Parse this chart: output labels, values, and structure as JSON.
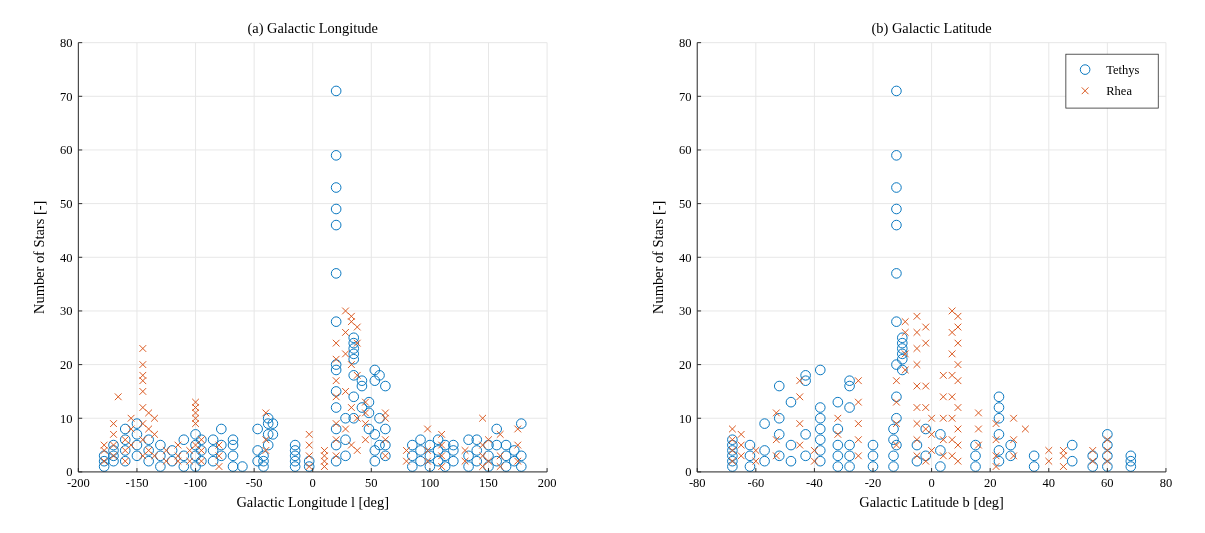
{
  "chart_data": [
    {
      "type": "scatter",
      "title": "(a) Galactic Longitude",
      "xlabel": "Galactic Longitude l [deg]",
      "ylabel": "Number of Stars [-]",
      "xlim": [
        -200,
        200
      ],
      "xticks": [
        -200,
        -150,
        -100,
        -50,
        0,
        50,
        100,
        150,
        200
      ],
      "ylim": [
        0,
        80
      ],
      "yticks": [
        0,
        10,
        20,
        30,
        40,
        50,
        60,
        70,
        80
      ],
      "grid": true,
      "legend": false,
      "series": [
        {
          "color": "#0072bd",
          "marker": "circle",
          "x": [
            -178,
            -178,
            -178,
            -170,
            -170,
            -170,
            -170,
            -160,
            -160,
            -160,
            -160,
            -150,
            -150,
            -150,
            -150,
            -140,
            -140,
            -140,
            -130,
            -130,
            -130,
            -120,
            -120,
            -110,
            -110,
            -110,
            -100,
            -100,
            -100,
            -100,
            -95,
            -95,
            -95,
            -85,
            -85,
            -85,
            -78,
            -78,
            -78,
            -68,
            -68,
            -68,
            -68,
            -60,
            -47,
            -47,
            -47,
            -42,
            -42,
            -42,
            -38,
            -38,
            -38,
            -38,
            -34,
            -34,
            -15,
            -15,
            -15,
            -15,
            -15,
            -3,
            -3,
            20,
            20,
            20,
            20,
            20,
            20,
            20,
            20,
            20,
            20,
            20,
            20,
            20,
            20,
            28,
            28,
            28,
            35,
            35,
            35,
            35,
            35,
            35,
            35,
            35,
            42,
            42,
            42,
            48,
            48,
            48,
            53,
            53,
            53,
            53,
            53,
            57,
            57,
            57,
            62,
            62,
            62,
            62,
            85,
            85,
            85,
            92,
            92,
            92,
            100,
            100,
            100,
            107,
            107,
            107,
            113,
            113,
            113,
            120,
            120,
            120,
            133,
            133,
            133,
            140,
            140,
            140,
            150,
            150,
            150,
            157,
            157,
            157,
            165,
            165,
            165,
            172,
            172,
            178,
            178,
            178
          ],
          "values": [
            1,
            2,
            3,
            2,
            3,
            4,
            5,
            2,
            4,
            6,
            8,
            3,
            5,
            7,
            9,
            2,
            4,
            6,
            1,
            3,
            5,
            2,
            4,
            1,
            3,
            6,
            1,
            3,
            5,
            7,
            2,
            4,
            6,
            2,
            4,
            6,
            3,
            5,
            8,
            1,
            3,
            5,
            6,
            1,
            2,
            4,
            8,
            1,
            2,
            3,
            5,
            7,
            9,
            10,
            7,
            9,
            1,
            2,
            3,
            4,
            5,
            1,
            2,
            2,
            5,
            8,
            12,
            15,
            19,
            20,
            28,
            37,
            46,
            49,
            53,
            59,
            71,
            3,
            6,
            10,
            10,
            14,
            18,
            21,
            22,
            23,
            24,
            25,
            12,
            16,
            17,
            13,
            11,
            8,
            19,
            17,
            7,
            4,
            2,
            18,
            10,
            5,
            16,
            8,
            5,
            3,
            1,
            3,
            5,
            2,
            4,
            6,
            1,
            3,
            5,
            2,
            4,
            6,
            1,
            3,
            5,
            2,
            4,
            5,
            1,
            3,
            6,
            2,
            4,
            6,
            1,
            3,
            5,
            2,
            5,
            8,
            1,
            3,
            5,
            2,
            4,
            9,
            1,
            3
          ]
        },
        {
          "color": "#d95319",
          "marker": "cross",
          "x": [
            -178,
            -178,
            -178,
            -170,
            -170,
            -170,
            -170,
            -166,
            -160,
            -160,
            -160,
            -155,
            -155,
            -155,
            -145,
            -145,
            -145,
            -145,
            -145,
            -145,
            -145,
            -145,
            -145,
            -140,
            -140,
            -140,
            -135,
            -135,
            -135,
            -125,
            -125,
            -115,
            -115,
            -115,
            -105,
            -105,
            -100,
            -100,
            -100,
            -100,
            -100,
            -100,
            -95,
            -95,
            -95,
            -80,
            -80,
            -80,
            -40,
            -40,
            -40,
            -3,
            -3,
            -3,
            -3,
            10,
            10,
            10,
            10,
            20,
            20,
            20,
            20,
            20,
            20,
            20,
            28,
            28,
            28,
            28,
            28,
            33,
            33,
            33,
            33,
            33,
            38,
            38,
            38,
            38,
            38,
            45,
            45,
            45,
            45,
            62,
            62,
            62,
            62,
            80,
            80,
            98,
            98,
            98,
            110,
            110,
            110,
            110,
            130,
            130,
            145,
            145,
            145,
            145,
            150,
            150,
            160,
            160,
            160,
            175,
            175,
            175
          ],
          "values": [
            2,
            4,
            5,
            3,
            5,
            7,
            9,
            14,
            2,
            4,
            6,
            5,
            8,
            10,
            3,
            6,
            9,
            12,
            15,
            17,
            18,
            20,
            23,
            4,
            8,
            11,
            3,
            7,
            10,
            2,
            4,
            2,
            3,
            5,
            2,
            4,
            5,
            9,
            10,
            11,
            12,
            13,
            2,
            4,
            6,
            1,
            3,
            5,
            11,
            6,
            4,
            1,
            3,
            5,
            7,
            1,
            2,
            3,
            4,
            3,
            6,
            9,
            14,
            17,
            21,
            24,
            8,
            15,
            22,
            26,
            30,
            5,
            12,
            20,
            28,
            29,
            4,
            10,
            18,
            24,
            27,
            6,
            9,
            13,
            11,
            3,
            6,
            10,
            11,
            2,
            4,
            2,
            4,
            8,
            1,
            3,
            5,
            7,
            2,
            4,
            1,
            3,
            5,
            10,
            2,
            6,
            1,
            3,
            7,
            2,
            5,
            8
          ]
        }
      ]
    },
    {
      "type": "scatter",
      "title": "(b) Galactic Latitude",
      "xlabel": "Galactic Latitude b [deg]",
      "ylabel": "Number of Stars [-]",
      "xlim": [
        -80,
        80
      ],
      "xticks": [
        -80,
        -60,
        -40,
        -20,
        0,
        20,
        40,
        60,
        80
      ],
      "ylim": [
        0,
        80
      ],
      "yticks": [
        0,
        10,
        20,
        30,
        40,
        50,
        60,
        70,
        80
      ],
      "grid": true,
      "legend": "top right",
      "series": [
        {
          "name": "Tethys",
          "color": "#0072bd",
          "marker": "circle",
          "x": [
            -68,
            -68,
            -68,
            -68,
            -68,
            -68,
            -62,
            -62,
            -62,
            -57,
            -57,
            -57,
            -52,
            -52,
            -52,
            -52,
            -48,
            -48,
            -48,
            -43,
            -43,
            -43,
            -43,
            -38,
            -38,
            -38,
            -38,
            -38,
            -38,
            -38,
            -32,
            -32,
            -32,
            -32,
            -32,
            -28,
            -28,
            -28,
            -28,
            -28,
            -28,
            -20,
            -20,
            -20,
            -13,
            -13,
            -13,
            -13,
            -12,
            -12,
            -12,
            -12,
            -12,
            -12,
            -12,
            -12,
            -12,
            -12,
            -12,
            -10,
            -10,
            -10,
            -10,
            -10,
            -10,
            -5,
            -5,
            -2,
            -2,
            3,
            3,
            3,
            15,
            15,
            15,
            23,
            23,
            23,
            23,
            23,
            23,
            27,
            27,
            35,
            35,
            48,
            48,
            55,
            55,
            60,
            60,
            60,
            60,
            68,
            68,
            68
          ],
          "values": [
            1,
            2,
            3,
            4,
            5,
            6,
            1,
            3,
            5,
            9,
            2,
            4,
            16,
            10,
            7,
            3,
            13,
            5,
            2,
            17,
            18,
            7,
            3,
            19,
            12,
            10,
            8,
            6,
            4,
            2,
            13,
            8,
            5,
            3,
            1,
            17,
            16,
            12,
            5,
            3,
            1,
            5,
            3,
            1,
            8,
            6,
            3,
            1,
            28,
            37,
            46,
            49,
            53,
            59,
            71,
            20,
            14,
            10,
            5,
            19,
            22,
            23,
            24,
            25,
            21,
            5,
            2,
            8,
            3,
            7,
            4,
            1,
            5,
            3,
            1,
            14,
            12,
            10,
            7,
            4,
            2,
            5,
            3,
            3,
            1,
            5,
            2,
            3,
            1,
            7,
            5,
            3,
            1,
            3,
            2,
            1
          ]
        },
        {
          "name": "Rhea",
          "color": "#d95319",
          "marker": "cross",
          "x": [
            -68,
            -68,
            -68,
            -68,
            -65,
            -65,
            -65,
            -60,
            -60,
            -53,
            -53,
            -53,
            -45,
            -45,
            -45,
            -45,
            -40,
            -40,
            -32,
            -32,
            -25,
            -25,
            -25,
            -25,
            -25,
            -12,
            -12,
            -12,
            -12,
            -9,
            -9,
            -9,
            -9,
            -5,
            -5,
            -5,
            -5,
            -5,
            -5,
            -5,
            -5,
            -5,
            -2,
            -2,
            -2,
            -2,
            -2,
            -2,
            0,
            0,
            0,
            4,
            4,
            4,
            4,
            4,
            7,
            7,
            7,
            7,
            7,
            7,
            7,
            7,
            9,
            9,
            9,
            9,
            9,
            9,
            9,
            9,
            9,
            16,
            16,
            16,
            22,
            22,
            22,
            22,
            28,
            28,
            28,
            32,
            40,
            40,
            45,
            45,
            45,
            55,
            55,
            60,
            60,
            60
          ],
          "values": [
            2,
            4,
            6,
            8,
            3,
            5,
            7,
            2,
            4,
            11,
            6,
            3,
            17,
            14,
            9,
            5,
            4,
            2,
            10,
            7,
            17,
            13,
            9,
            6,
            3,
            5,
            9,
            13,
            17,
            19,
            22,
            26,
            28,
            29,
            26,
            23,
            20,
            16,
            12,
            9,
            6,
            3,
            27,
            24,
            16,
            12,
            8,
            2,
            10,
            7,
            4,
            18,
            14,
            10,
            6,
            3,
            30,
            26,
            22,
            18,
            14,
            10,
            6,
            3,
            29,
            27,
            24,
            20,
            17,
            12,
            8,
            5,
            2,
            11,
            8,
            5,
            9,
            6,
            3,
            1,
            10,
            6,
            3,
            8,
            4,
            2,
            4,
            3,
            1,
            4,
            2,
            6,
            4,
            2
          ]
        }
      ]
    }
  ]
}
